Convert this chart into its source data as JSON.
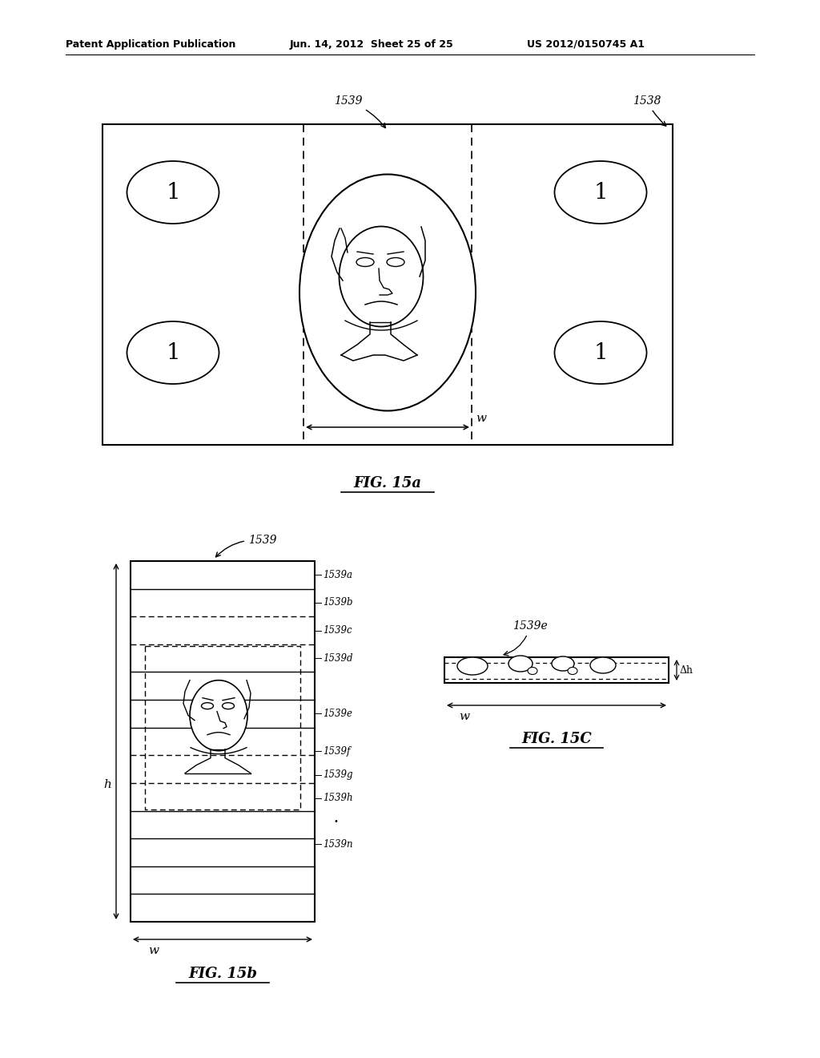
{
  "header_left": "Patent Application Publication",
  "header_mid": "Jun. 14, 2012  Sheet 25 of 25",
  "header_right": "US 2012/0150745 A1",
  "fig15a_label": "FIG. 15a",
  "fig15b_label": "FIG. 15b",
  "fig15c_label": "FIG. 15C",
  "bg_color": "#ffffff",
  "line_color": "#000000",
  "label_1538": "1538",
  "label_1539": "1539",
  "label_1539a": "1539a",
  "label_1539b": "1539b",
  "label_1539c": "1539c",
  "label_1539d": "1539d",
  "label_1539e_b": "1539e",
  "label_1539e_c": "1539e",
  "label_1539f": "1539f",
  "label_1539g": "1539g",
  "label_1539h": "1539h",
  "label_1539n": "1539n",
  "label_w": "w",
  "label_h": "h",
  "label_dh": "Δh"
}
